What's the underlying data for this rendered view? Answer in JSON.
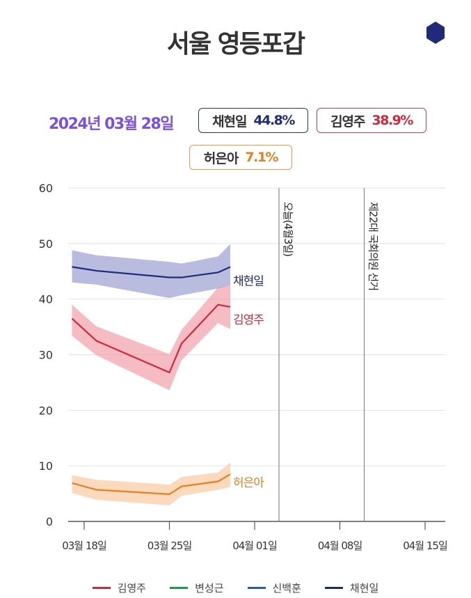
{
  "header": {
    "title": "서울 영등포갑",
    "logo_icon": "hexagon-icon"
  },
  "summary": {
    "date": "2024년 03월 28일",
    "candidates": [
      {
        "name": "채현일",
        "value": "44.8%",
        "color": "#1f2a7a"
      },
      {
        "name": "김영주",
        "value": "38.9%",
        "color": "#d0283a"
      },
      {
        "name": "허은아",
        "value": "7.1%",
        "color": "#e57f22"
      }
    ]
  },
  "chart_data": {
    "type": "line",
    "title": "",
    "xlabel": "",
    "ylabel": "",
    "ylim": [
      0,
      60
    ],
    "yticks": [
      0,
      10,
      20,
      30,
      40,
      50,
      60
    ],
    "xlim": [
      "2024-03-16",
      "2024-04-17"
    ],
    "xticks": [
      {
        "date": "2024-03-18",
        "label": "03월 18일"
      },
      {
        "date": "2024-03-25",
        "label": "03월 25일"
      },
      {
        "date": "2024-04-01",
        "label": "04월 01일"
      },
      {
        "date": "2024-04-08",
        "label": "04월 08일"
      },
      {
        "date": "2024-04-15",
        "label": "04월 15일"
      }
    ],
    "grid": "horizontal",
    "x": [
      "2024-03-17",
      "2024-03-19",
      "2024-03-25",
      "2024-03-26",
      "2024-03-29",
      "2024-03-30"
    ],
    "series": [
      {
        "name": "채현일",
        "color": "#1f2a7a",
        "band_color": "#8a90c8",
        "values": [
          45.8,
          45.1,
          43.9,
          43.9,
          44.8,
          45.8
        ],
        "upper": [
          48.8,
          47.9,
          46.7,
          46.4,
          47.7,
          49.9
        ],
        "lower": [
          43.0,
          42.6,
          40.2,
          40.7,
          41.9,
          42.5
        ]
      },
      {
        "name": "김영주",
        "color": "#d0283a",
        "band_color": "#f08f9c",
        "values": [
          36.5,
          32.5,
          26.8,
          32.0,
          39.0,
          38.6
        ],
        "upper": [
          39.0,
          35.1,
          30.1,
          34.5,
          42.1,
          42.5
        ],
        "lower": [
          33.4,
          29.9,
          23.6,
          29.0,
          35.7,
          34.6
        ]
      },
      {
        "name": "허은아",
        "color": "#e57f22",
        "band_color": "#f7c08f",
        "values": [
          6.9,
          5.7,
          4.9,
          6.3,
          7.2,
          8.5
        ],
        "upper": [
          8.3,
          7.5,
          6.6,
          8.0,
          8.8,
          10.6
        ],
        "lower": [
          5.1,
          3.9,
          2.9,
          4.6,
          5.7,
          6.2
        ]
      }
    ],
    "annotations": [
      {
        "date": "2024-04-03",
        "label": "오늘(4월3일)"
      },
      {
        "date": "2024-04-10",
        "label": "제22대 국회의원 선거"
      }
    ],
    "legend": {
      "placement": "bottom",
      "entries": [
        {
          "name": "김영주",
          "color": "#d0283a"
        },
        {
          "name": "변성근",
          "color": "#1e9a4a"
        },
        {
          "name": "신백훈",
          "color": "#2a5ea8"
        },
        {
          "name": "채현일",
          "color": "#1f2a6a"
        }
      ]
    }
  }
}
